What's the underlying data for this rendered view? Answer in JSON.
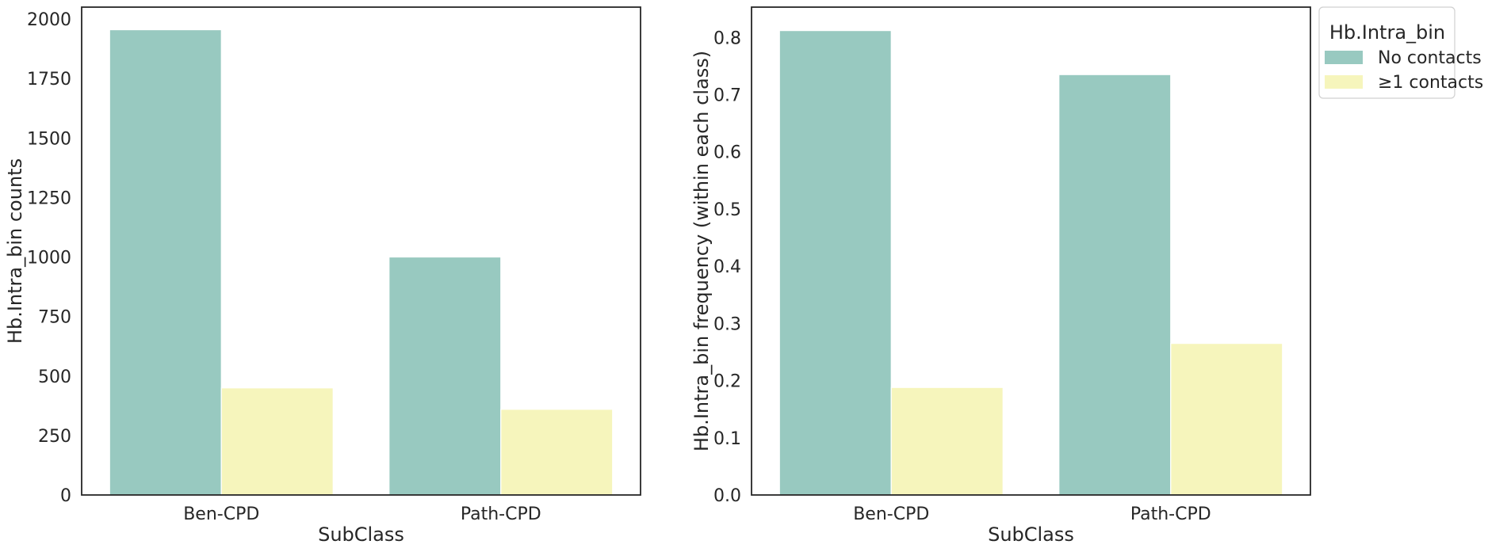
{
  "chart_data": [
    {
      "type": "bar",
      "categories": [
        "Ben-CPD",
        "Path-CPD"
      ],
      "series": [
        {
          "name": "No contacts",
          "values": [
            1955,
            1000
          ],
          "color": "#98c9c0"
        },
        {
          "name": "≥1 contacts",
          "values": [
            450,
            360
          ],
          "color": "#f6f5bc"
        }
      ],
      "title": "",
      "xlabel": "SubClass",
      "ylabel": "Hb.Intra_bin counts",
      "ylim": [
        0,
        2050
      ],
      "yticks": [
        0,
        250,
        500,
        750,
        1000,
        1250,
        1500,
        1750,
        2000
      ],
      "ytick_labels": [
        "0",
        "250",
        "500",
        "750",
        "1000",
        "1250",
        "1500",
        "1750",
        "2000"
      ],
      "grid": false
    },
    {
      "type": "bar",
      "categories": [
        "Ben-CPD",
        "Path-CPD"
      ],
      "series": [
        {
          "name": "No contacts",
          "values": [
            0.812,
            0.735
          ],
          "color": "#98c9c0"
        },
        {
          "name": "≥1 contacts",
          "values": [
            0.188,
            0.265
          ],
          "color": "#f6f5bc"
        }
      ],
      "title": "",
      "xlabel": "SubClass",
      "ylabel": "Hb.Intra_bin frequency (within each class)",
      "ylim": [
        0,
        0.853
      ],
      "yticks": [
        0,
        0.1,
        0.2,
        0.3,
        0.4,
        0.5,
        0.6,
        0.7,
        0.8
      ],
      "ytick_labels": [
        "0.0",
        "0.1",
        "0.2",
        "0.3",
        "0.4",
        "0.5",
        "0.6",
        "0.7",
        "0.8"
      ],
      "grid": false,
      "legend": {
        "title": "Hb.Intra_bin",
        "entries": [
          "No contacts",
          "≥1 contacts"
        ],
        "placement": "outside-upper-right"
      }
    }
  ]
}
